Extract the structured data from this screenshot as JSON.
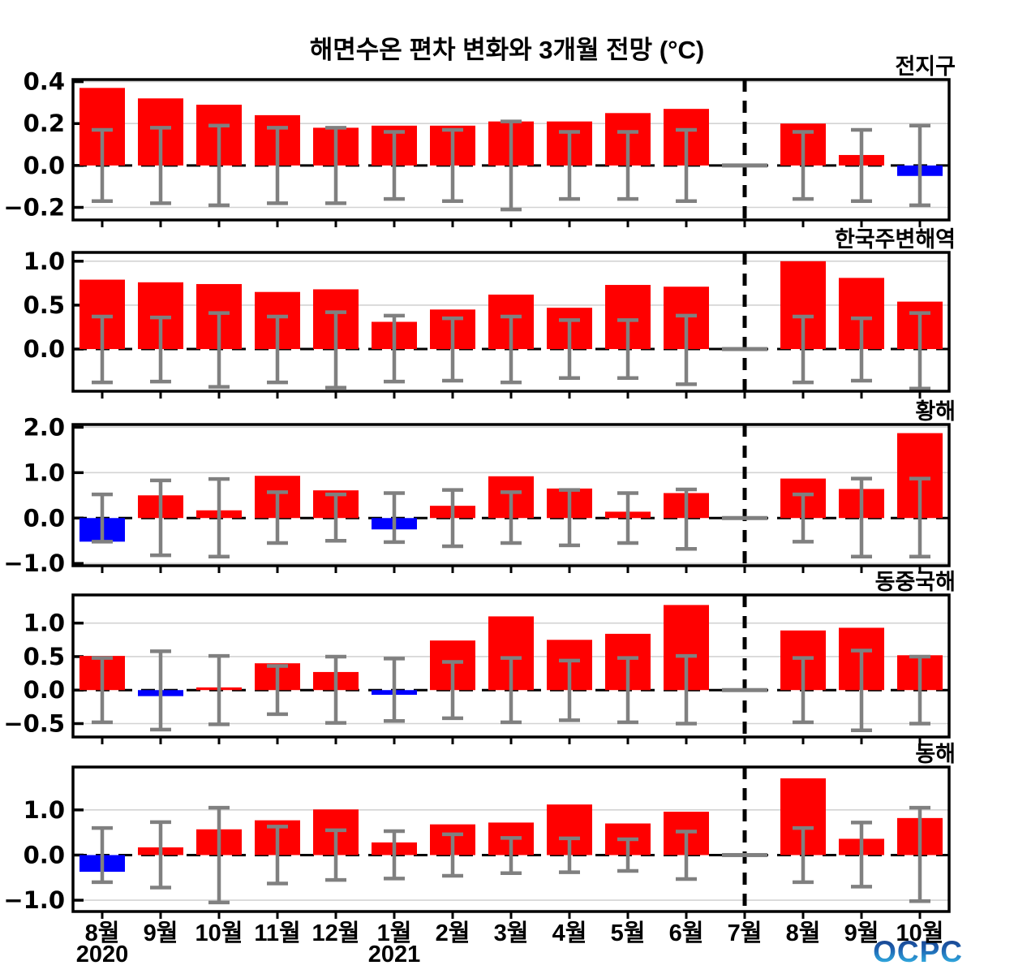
{
  "title": "해면수온 편차 변화와 3개월 전망 (°C)",
  "logo": {
    "text": "OCPC"
  },
  "colors": {
    "bar_positive": "#ff0000",
    "bar_negative": "#0000ff",
    "error_bar": "#808080",
    "zero_line": "#000000",
    "grid_line": "#d3d3d3",
    "divider": "#000000",
    "axis": "#000000"
  },
  "x_axis": {
    "months": [
      "8월",
      "9월",
      "10월",
      "11월",
      "12월",
      "1월",
      "2월",
      "3월",
      "4월",
      "5월",
      "6월",
      "7월",
      "8월",
      "9월",
      "10월"
    ],
    "year_labels": [
      {
        "text": "2020",
        "month_index": 0
      },
      {
        "text": "2021",
        "month_index": 5
      }
    ]
  },
  "forecast": {
    "divider_month_index": 11
  },
  "chart_data": [
    {
      "type": "bar",
      "id": "global",
      "title": "전지구",
      "categories": [
        "8월",
        "9월",
        "10월",
        "11월",
        "12월",
        "1월",
        "2월",
        "3월",
        "4월",
        "5월",
        "6월",
        "7월",
        "8월",
        "9월",
        "10월"
      ],
      "values": [
        0.37,
        0.32,
        0.29,
        0.24,
        0.18,
        0.19,
        0.19,
        0.21,
        0.21,
        0.25,
        0.27,
        0.0,
        0.2,
        0.05,
        -0.05
      ],
      "error_high": [
        0.17,
        0.18,
        0.19,
        0.18,
        0.18,
        0.16,
        0.17,
        0.21,
        0.16,
        0.16,
        0.17,
        null,
        0.16,
        0.17,
        0.19
      ],
      "error_low": [
        -0.17,
        -0.18,
        -0.19,
        -0.18,
        -0.18,
        -0.16,
        -0.17,
        -0.21,
        -0.16,
        -0.16,
        -0.17,
        null,
        -0.16,
        -0.17,
        -0.19
      ],
      "yticks": [
        0.4,
        0.2,
        0.0,
        -0.2
      ],
      "ylim": [
        -0.26,
        0.41
      ]
    },
    {
      "type": "bar",
      "id": "korea-adjacent-seas",
      "title": "한국주변해역",
      "categories": [
        "8월",
        "9월",
        "10월",
        "11월",
        "12월",
        "1월",
        "2월",
        "3월",
        "4월",
        "5월",
        "6월",
        "7월",
        "8월",
        "9월",
        "10월"
      ],
      "values": [
        0.79,
        0.76,
        0.74,
        0.65,
        0.68,
        0.31,
        0.45,
        0.62,
        0.47,
        0.73,
        0.71,
        0.0,
        1.0,
        0.81,
        0.54
      ],
      "error_high": [
        0.37,
        0.36,
        0.41,
        0.37,
        0.42,
        0.38,
        0.35,
        0.37,
        0.33,
        0.33,
        0.38,
        null,
        0.37,
        0.35,
        0.41
      ],
      "error_low": [
        -0.38,
        -0.37,
        -0.43,
        -0.38,
        -0.44,
        -0.37,
        -0.36,
        -0.38,
        -0.33,
        -0.33,
        -0.4,
        null,
        -0.38,
        -0.36,
        -0.45
      ],
      "yticks": [
        1.0,
        0.5,
        0.0
      ],
      "ylim": [
        -0.48,
        1.1
      ]
    },
    {
      "type": "bar",
      "id": "yellow-sea",
      "title": "황해",
      "categories": [
        "8월",
        "9월",
        "10월",
        "11월",
        "12월",
        "1월",
        "2월",
        "3월",
        "4월",
        "5월",
        "6월",
        "7월",
        "8월",
        "9월",
        "10월"
      ],
      "values": [
        -0.52,
        0.5,
        0.17,
        0.93,
        0.61,
        -0.25,
        0.27,
        0.92,
        0.65,
        0.14,
        0.55,
        0.0,
        0.87,
        0.64,
        1.87
      ],
      "error_high": [
        0.52,
        0.83,
        0.86,
        0.57,
        0.52,
        0.55,
        0.62,
        0.57,
        0.62,
        0.55,
        0.63,
        null,
        0.52,
        0.87,
        0.87
      ],
      "error_low": [
        -0.52,
        -0.82,
        -0.85,
        -0.55,
        -0.5,
        -0.53,
        -0.62,
        -0.55,
        -0.6,
        -0.55,
        -0.68,
        null,
        -0.52,
        -0.85,
        -0.85
      ],
      "yticks": [
        2.0,
        1.0,
        0.0,
        -1.0
      ],
      "ylim": [
        -1.05,
        2.06
      ]
    },
    {
      "type": "bar",
      "id": "east-china-sea",
      "title": "동중국해",
      "categories": [
        "8월",
        "9월",
        "10월",
        "11월",
        "12월",
        "1월",
        "2월",
        "3월",
        "4월",
        "5월",
        "6월",
        "7월",
        "8월",
        "9월",
        "10월"
      ],
      "values": [
        0.51,
        -0.09,
        0.04,
        0.4,
        0.27,
        -0.07,
        0.74,
        1.1,
        0.75,
        0.84,
        1.27,
        0.0,
        0.89,
        0.93,
        0.52
      ],
      "error_high": [
        0.48,
        0.58,
        0.51,
        0.36,
        0.5,
        0.47,
        0.42,
        0.48,
        0.44,
        0.48,
        0.51,
        null,
        0.48,
        0.59,
        0.5
      ],
      "error_low": [
        -0.48,
        -0.59,
        -0.51,
        -0.36,
        -0.49,
        -0.46,
        -0.42,
        -0.48,
        -0.45,
        -0.48,
        -0.5,
        null,
        -0.48,
        -0.6,
        -0.5
      ],
      "yticks": [
        1.0,
        0.5,
        0.0,
        -0.5
      ],
      "ylim": [
        -0.7,
        1.42
      ]
    },
    {
      "type": "bar",
      "id": "east-sea",
      "title": "동해",
      "categories": [
        "8월",
        "9월",
        "10월",
        "11월",
        "12월",
        "1월",
        "2월",
        "3월",
        "4월",
        "5월",
        "6월",
        "7월",
        "8월",
        "9월",
        "10월"
      ],
      "values": [
        -0.37,
        0.17,
        0.57,
        0.77,
        1.01,
        0.28,
        0.68,
        0.72,
        1.12,
        0.7,
        0.96,
        0.0,
        1.7,
        0.36,
        0.82
      ],
      "error_high": [
        0.6,
        0.73,
        1.05,
        0.63,
        0.55,
        0.53,
        0.46,
        0.38,
        0.37,
        0.35,
        0.52,
        null,
        0.6,
        0.72,
        1.05
      ],
      "error_low": [
        -0.6,
        -0.72,
        -1.05,
        -0.63,
        -0.55,
        -0.52,
        -0.46,
        -0.4,
        -0.38,
        -0.35,
        -0.53,
        null,
        -0.6,
        -0.7,
        -1.02
      ],
      "yticks": [
        1.0,
        0.0,
        -1.0
      ],
      "ylim": [
        -1.25,
        1.95
      ]
    }
  ]
}
